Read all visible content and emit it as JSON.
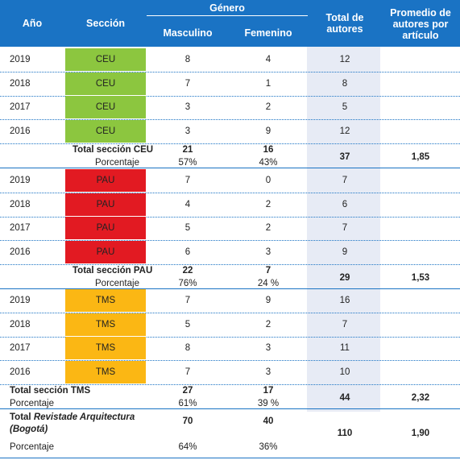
{
  "colors": {
    "header": "#1a73c4",
    "ceu": "#8cc63f",
    "pau": "#e21a22",
    "tms": "#fbb714",
    "highlight": "#e7ebf5"
  },
  "headers": {
    "year": "Año",
    "section": "Sección",
    "gender": "Género",
    "male": "Masculino",
    "female": "Femenino",
    "total_authors": "Total de autores",
    "avg_authors": "Promedio de autores por artículo"
  },
  "groups": [
    {
      "rows": [
        {
          "year": "2019",
          "section": "CEU",
          "male": "8",
          "female": "4",
          "total": "12"
        },
        {
          "year": "2018",
          "section": "CEU",
          "male": "7",
          "female": "1",
          "total": "8"
        },
        {
          "year": "2017",
          "section": "CEU",
          "male": "3",
          "female": "2",
          "total": "5"
        },
        {
          "year": "2016",
          "section": "CEU",
          "male": "3",
          "female": "9",
          "total": "12"
        }
      ],
      "total_label": "Total sección CEU",
      "pct_label": "Porcentaje",
      "male_total": "21",
      "female_total": "16",
      "male_pct": "57%",
      "female_pct": "43%",
      "total": "37",
      "avg": "1,85"
    },
    {
      "rows": [
        {
          "year": "2019",
          "section": "PAU",
          "male": "7",
          "female": "0",
          "total": "7"
        },
        {
          "year": "2018",
          "section": "PAU",
          "male": "4",
          "female": "2",
          "total": "6"
        },
        {
          "year": "2017",
          "section": "PAU",
          "male": "5",
          "female": "2",
          "total": "7"
        },
        {
          "year": "2016",
          "section": "PAU",
          "male": "6",
          "female": "3",
          "total": "9"
        }
      ],
      "total_label": "Total sección PAU",
      "pct_label": "Porcentaje",
      "male_total": "22",
      "female_total": "7",
      "male_pct": "76%",
      "female_pct": "24 %",
      "total": "29",
      "avg": "1,53"
    },
    {
      "rows": [
        {
          "year": "2019",
          "section": "TMS",
          "male": "7",
          "female": "9",
          "total": "16"
        },
        {
          "year": "2018",
          "section": "TMS",
          "male": "5",
          "female": "2",
          "total": "7"
        },
        {
          "year": "2017",
          "section": "TMS",
          "male": "8",
          "female": "3",
          "total": "11"
        },
        {
          "year": "2016",
          "section": "TMS",
          "male": "7",
          "female": "3",
          "total": "10"
        }
      ],
      "total_label": "Total sección TMS",
      "pct_label": "Porcentaje",
      "male_total": "27",
      "female_total": "17",
      "male_pct": "61%",
      "female_pct": "39 %",
      "total": "44",
      "avg": "2,32"
    }
  ],
  "grand": {
    "label_prefix": "Total ",
    "label_italic": "Revistade Arquitectura (Bogotá)",
    "pct_label": "Porcentaje",
    "male_total": "70",
    "female_total": "40",
    "male_pct": "64%",
    "female_pct": "36%",
    "total": "110",
    "avg": "1,90"
  }
}
